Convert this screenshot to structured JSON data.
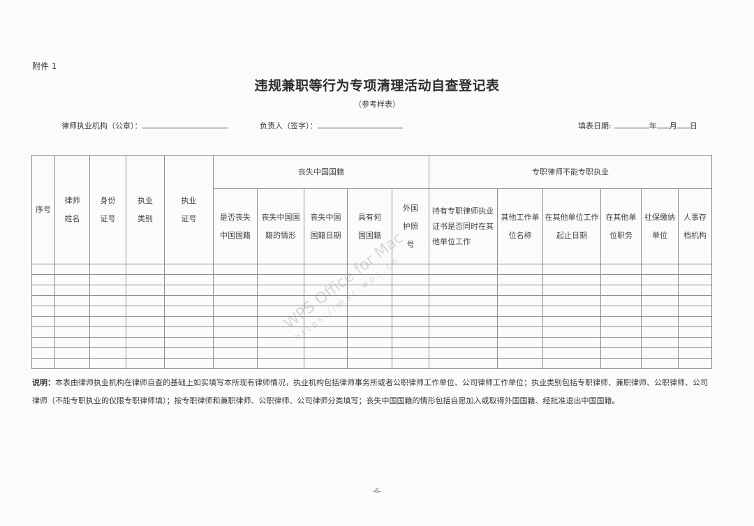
{
  "attachment_label": "附件 1",
  "title": "违规兼职等行为专项清理活动自查登记表",
  "subtitle": "（参考样表）",
  "fields": {
    "institution_label": "律师执业机构（公章）：",
    "responsible_label": "负责人（签字）：",
    "date_label": "填表日期:",
    "year": "年",
    "month": "月",
    "day": "日"
  },
  "table": {
    "fixed_columns": [
      "序号",
      "律师姓名",
      "身份证号",
      "执业类别",
      "执业证号"
    ],
    "group1": {
      "label": "丧失中国国籍",
      "columns": [
        "是否丧失中国国籍",
        "丧失中国国籍的情形",
        "丧失中国国籍日期",
        "具有何国国籍",
        "外国护照号"
      ]
    },
    "group2": {
      "label": "专职律师不能专职执业",
      "columns": [
        "持有专职律师执业证书是否同时在其他单位工作",
        "其他工作单位名称",
        "在其他单位工作起止日期",
        "在其他单位职务",
        "社保缴纳单位",
        "人事存档机构"
      ]
    },
    "empty_rows": 10
  },
  "note": {
    "label": "说明：",
    "text": "本表由律师执业机构在律师自查的基础上如实填写本所现有律师情况，执业机构包括律师事务所或者公职律师工作单位、公司律师工作单位；执业类别包括专职律师、兼职律师、公职律师、公司律师（不能专职执业的仅限专职律师填）；按专职律师和兼职律师、公职律师、公司律师分类填写；丧失中国国籍的情形包括自愿加入或取得外国国籍、经批准退出中国国籍。"
  },
  "page_number": "-6-",
  "watermark": {
    "line1": "WPS Office for Mac",
    "line2": "https://mac.wps.cn"
  }
}
